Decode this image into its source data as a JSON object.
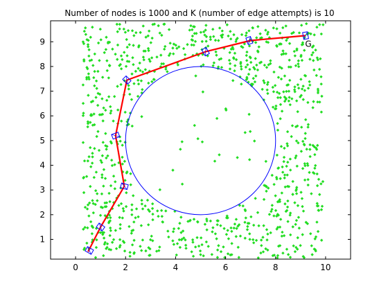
{
  "chart_data": {
    "type": "scatter",
    "title": "Number of nodes is 1000 and K (number of edge attempts) is 10",
    "xlabel": "",
    "ylabel": "",
    "xlim": [
      -1,
      11
    ],
    "ylim": [
      0.2,
      9.85
    ],
    "x_ticks": [
      "0",
      "2",
      "4",
      "6",
      "8",
      "10"
    ],
    "y_ticks": [
      "1",
      "2",
      "3",
      "4",
      "5",
      "6",
      "7",
      "8",
      "9"
    ],
    "grid": false,
    "legend": "none",
    "colors": {
      "nodes": "#22dd22",
      "obstacle": "#0000ff",
      "path": "#ff0000",
      "robot": "#0000ff",
      "axes": "#000000"
    },
    "series": [
      {
        "role": "nodes",
        "count": 1000,
        "seed": 7,
        "note_region": {
          "x": [
            0.3,
            9.9
          ],
          "y": [
            0.25,
            9.75
          ]
        }
      }
    ],
    "obstacle": {
      "shape": "circle",
      "center": [
        5,
        5
      ],
      "radius": 3
    },
    "path": {
      "points": [
        [
          0.5,
          0.5
        ],
        [
          1.0,
          1.5
        ],
        [
          1.95,
          3.15
        ],
        [
          1.6,
          5.2
        ],
        [
          2.05,
          7.45
        ],
        [
          5.2,
          8.6
        ],
        [
          7.0,
          9.05
        ],
        [
          9.2,
          9.25
        ]
      ]
    },
    "robot_poses": [
      {
        "x": 0.55,
        "y": 0.55,
        "angle": 30
      },
      {
        "x": 1.0,
        "y": 1.5,
        "angle": 35
      },
      {
        "x": 1.95,
        "y": 3.15,
        "angle": 15
      },
      {
        "x": 1.6,
        "y": 5.2,
        "angle": -20
      },
      {
        "x": 2.05,
        "y": 7.45,
        "angle": 45
      },
      {
        "x": 5.2,
        "y": 8.6,
        "angle": 60
      },
      {
        "x": 6.95,
        "y": 9.05,
        "angle": 70
      },
      {
        "x": 9.2,
        "y": 9.25,
        "angle": 80
      }
    ],
    "goal_label": "G"
  }
}
